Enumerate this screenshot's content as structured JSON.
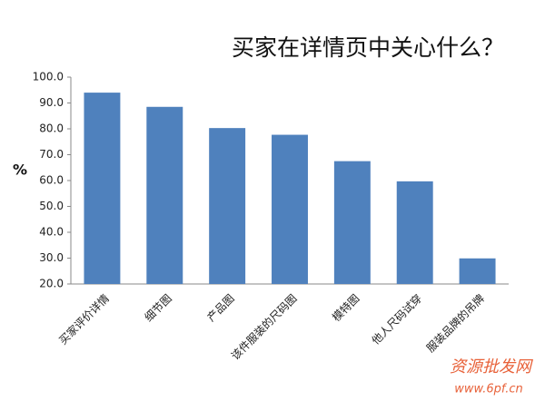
{
  "chart_data": {
    "type": "bar",
    "title": "买家在详情页中关心什么？",
    "y_label": "%",
    "categories": [
      "买家评价详情",
      "细节图",
      "产品图",
      "该件服装的尺码图",
      "模特图",
      "他人尺码试穿",
      "服装品牌的吊牌"
    ],
    "values": [
      94,
      88.5,
      80.3,
      77.7,
      67.5,
      59.7,
      29.9
    ],
    "color": "#4f81bd",
    "ylim": [
      20,
      100
    ],
    "yticks": [
      {
        "value": 20,
        "label": "20.0"
      },
      {
        "value": 30,
        "label": "30.0"
      },
      {
        "value": 40,
        "label": "40.0"
      },
      {
        "value": 50,
        "label": "50.0"
      },
      {
        "value": 60,
        "label": "60.0"
      },
      {
        "value": 70,
        "label": "70.0"
      },
      {
        "value": 80,
        "label": "80.0"
      },
      {
        "value": 90,
        "label": "90.0"
      },
      {
        "value": 100,
        "label": "100.0"
      }
    ],
    "grid": false,
    "annotations": [
      "资源批发网",
      "www.6pf.cn"
    ]
  }
}
